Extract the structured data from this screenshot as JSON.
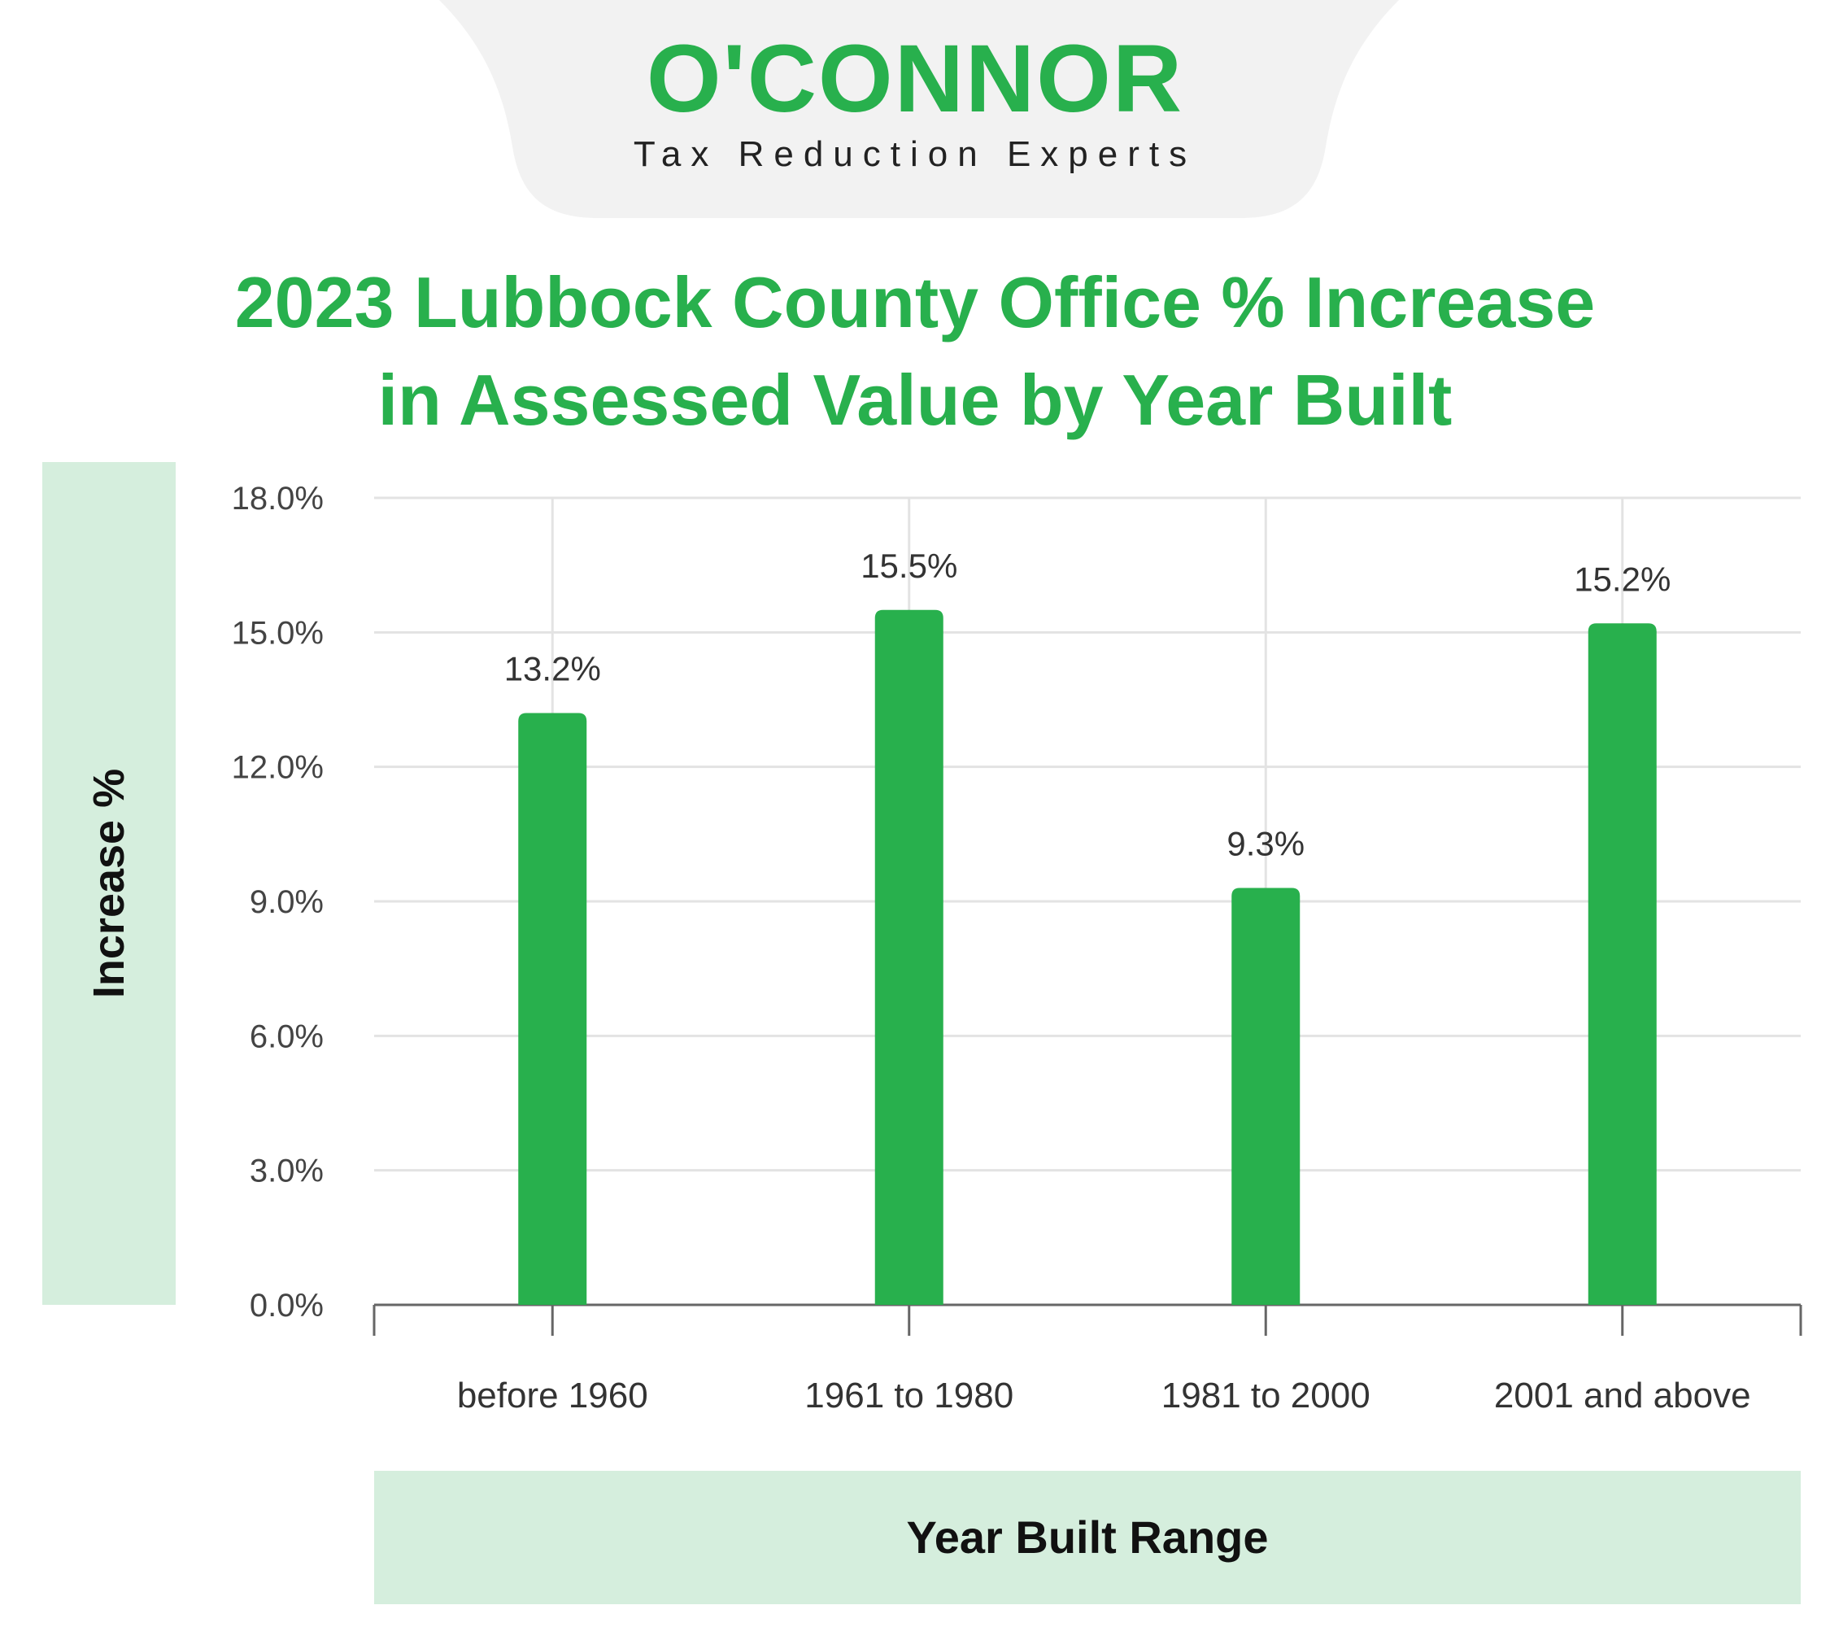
{
  "brand": {
    "name": "O'CONNOR",
    "tagline": "Tax Reduction Experts",
    "accent_color": "#28b04d",
    "tab_color": "#f2f2f2"
  },
  "chart_data": {
    "type": "bar",
    "title_line1": "2023 Lubbock County Office % Increase",
    "title_line2": "in Assessed Value by Year Built",
    "xlabel": "Year Built Range",
    "ylabel": "Increase %",
    "categories": [
      "before 1960",
      "1961 to 1980",
      "1981 to 2000",
      "2001 and above"
    ],
    "values": [
      13.2,
      15.5,
      9.3,
      15.2
    ],
    "value_labels": [
      "13.2%",
      "15.5%",
      "9.3%",
      "15.2%"
    ],
    "ylim": [
      0,
      18
    ],
    "yticks": [
      0,
      3,
      6,
      9,
      12,
      15,
      18
    ],
    "ytick_labels": [
      "0.0%",
      "3.0%",
      "6.0%",
      "9.0%",
      "12.0%",
      "15.0%",
      "18.0%"
    ],
    "grid": true,
    "bar_color": "#28b04d",
    "label_band_color": "#d5eedd"
  }
}
